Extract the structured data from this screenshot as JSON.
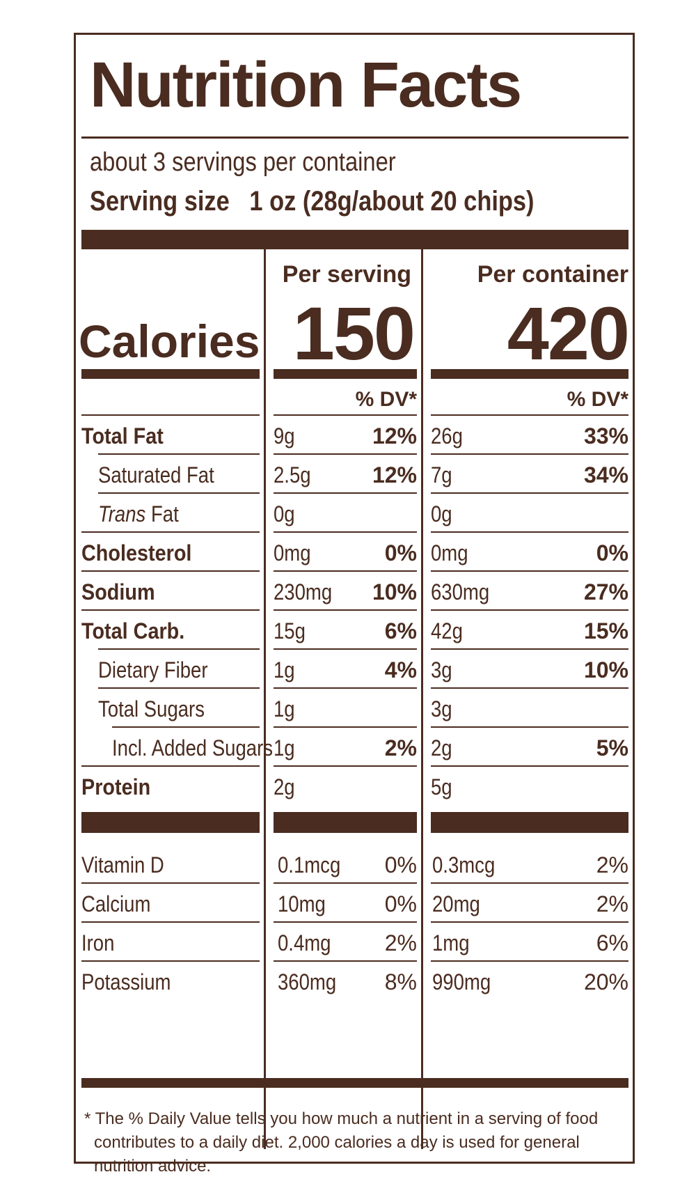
{
  "title": "Nutrition Facts",
  "servings_per_container": "about 3 servings per container",
  "serving_size_label": "Serving size",
  "serving_size_value": "1 oz (28g/about 20 chips)",
  "columns": {
    "per_serving": "Per serving",
    "per_container": "Per container"
  },
  "calories": {
    "label": "Calories",
    "per_serving": "150",
    "per_container": "420"
  },
  "dv_header": "% DV*",
  "nutrients": [
    {
      "label": "Total Fat",
      "s_amt": "9g",
      "s_dv": "12%",
      "c_amt": "26g",
      "c_dv": "33%"
    },
    {
      "label": "Saturated Fat",
      "s_amt": "2.5g",
      "s_dv": "12%",
      "c_amt": "7g",
      "c_dv": "34%"
    },
    {
      "label_italic": "Trans",
      "label": " Fat",
      "s_amt": "0g",
      "s_dv": "",
      "c_amt": "0g",
      "c_dv": ""
    },
    {
      "label": "Cholesterol",
      "s_amt": "0mg",
      "s_dv": "0%",
      "c_amt": "0mg",
      "c_dv": "0%"
    },
    {
      "label": "Sodium",
      "s_amt": "230mg",
      "s_dv": "10%",
      "c_amt": "630mg",
      "c_dv": "27%"
    },
    {
      "label": "Total Carb.",
      "s_amt": "15g",
      "s_dv": "6%",
      "c_amt": "42g",
      "c_dv": "15%"
    },
    {
      "label": "Dietary Fiber",
      "s_amt": "1g",
      "s_dv": "4%",
      "c_amt": "3g",
      "c_dv": "10%"
    },
    {
      "label": "Total Sugars",
      "s_amt": "1g",
      "s_dv": "",
      "c_amt": "3g",
      "c_dv": ""
    },
    {
      "label": "Incl. Added Sugars",
      "s_amt": "1g",
      "s_dv": "2%",
      "c_amt": "2g",
      "c_dv": "5%"
    },
    {
      "label": "Protein",
      "s_amt": "2g",
      "s_dv": "",
      "c_amt": "5g",
      "c_dv": ""
    }
  ],
  "vitamins": [
    {
      "label": "Vitamin D",
      "s_amt": "0.1mcg",
      "s_dv": "0%",
      "c_amt": "0.3mcg",
      "c_dv": "2%"
    },
    {
      "label": "Calcium",
      "s_amt": "10mg",
      "s_dv": "0%",
      "c_amt": "20mg",
      "c_dv": "2%"
    },
    {
      "label": "Iron",
      "s_amt": "0.4mg",
      "s_dv": "2%",
      "c_amt": "1mg",
      "c_dv": "6%"
    },
    {
      "label": "Potassium",
      "s_amt": "360mg",
      "s_dv": "8%",
      "c_amt": "990mg",
      "c_dv": "20%"
    }
  ],
  "footnote": {
    "line1": "* The % Daily Value tells you how much a nutrient in a serving of food",
    "line2": "contributes to a daily diet. 2,000 calories a day is used for general",
    "line3": "nutrition advice."
  }
}
